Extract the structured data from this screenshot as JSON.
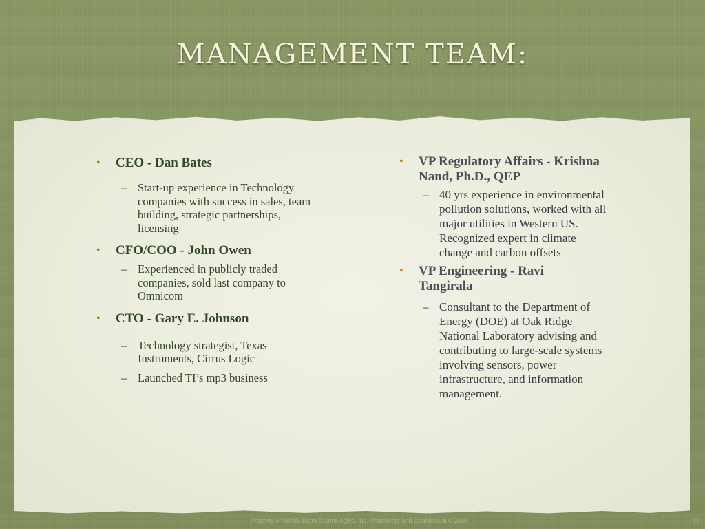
{
  "slide": {
    "title": "MANAGEMENT TEAM:",
    "footer": "Property of WindStream Technologies, Inc. Proprietary and Confidential © 2009",
    "page_number": "17"
  },
  "left_column": [
    {
      "heading": "CEO - Dan Bates",
      "details": [
        "Start-up experience in Technology companies with success in sales, team building, strategic partnerships, licensing"
      ]
    },
    {
      "heading": "CFO/COO - John Owen",
      "details": [
        "Experienced in publicly traded companies, sold last company to Omnicom"
      ]
    },
    {
      "heading": "CTO - Gary E. Johnson",
      "details": [
        "Technology strategist, Texas Instruments, Cirrus Logic",
        "Launched TI’s mp3 business"
      ]
    }
  ],
  "right_column": [
    {
      "heading": "VP Regulatory Affairs - Krishna Nand, Ph.D., QEP",
      "details": [
        "40 yrs experience in environmental pollution solutions, worked with all major utilities in Western US. Recognized expert in climate change and carbon offsets"
      ]
    },
    {
      "heading": "VP Engineering - Ravi Tangirala",
      "details": [
        "Consultant to the Department of Energy (DOE) at Oak Ridge National Laboratory advising and contributing to large-scale systems involving sensors, power infrastructure, and information management."
      ]
    }
  ],
  "colors": {
    "background": "#86935f",
    "paper": "#eceee0",
    "bullet": "#b5761e",
    "title": "#f6f3df"
  }
}
